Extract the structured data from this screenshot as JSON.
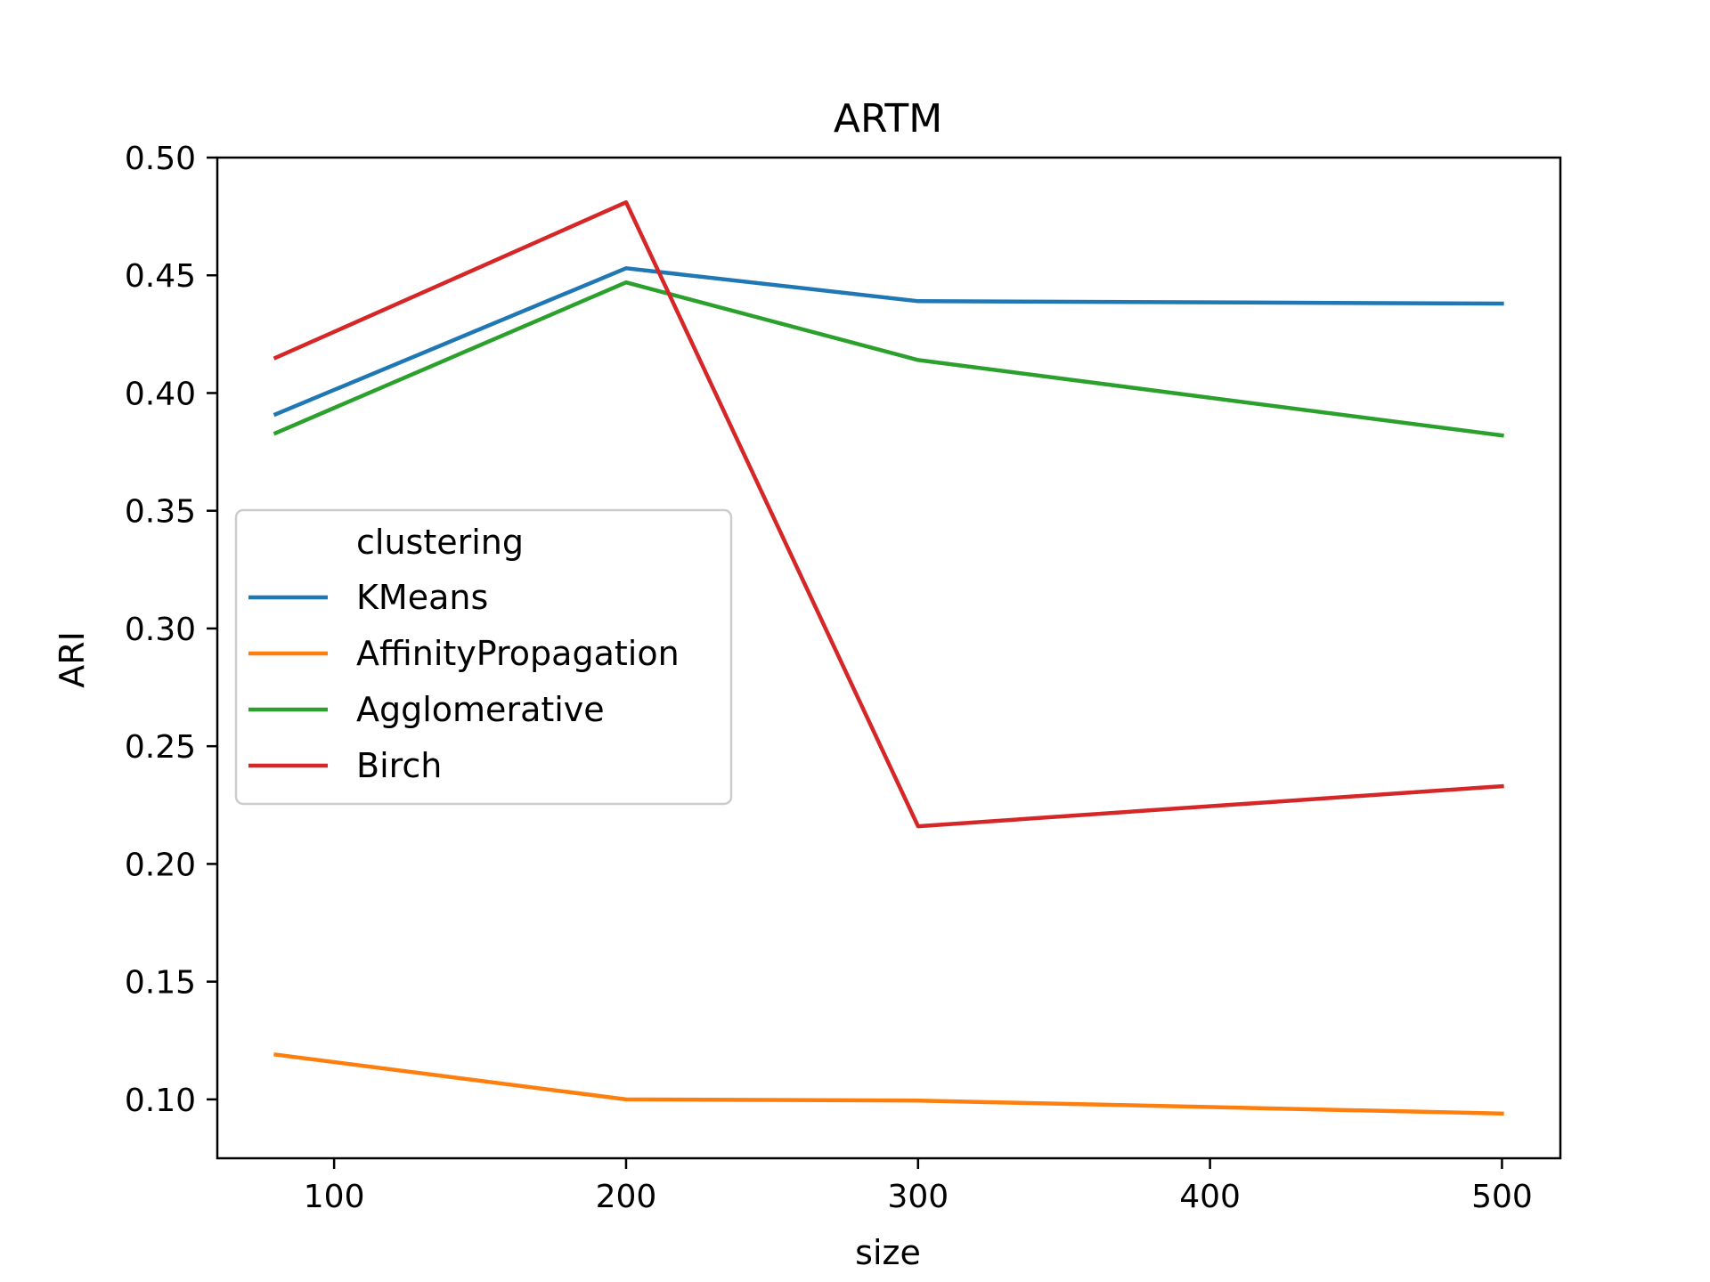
{
  "chart_data": {
    "type": "line",
    "title": "ARTM",
    "xlabel": "size",
    "ylabel": "ARI",
    "x": [
      80,
      200,
      300,
      500
    ],
    "xlim": [
      60,
      520
    ],
    "ylim": [
      0.075,
      0.5
    ],
    "xticks": [
      100,
      200,
      300,
      400,
      500
    ],
    "xtick_labels": [
      "100",
      "200",
      "300",
      "400",
      "500"
    ],
    "yticks": [
      0.1,
      0.15,
      0.2,
      0.25,
      0.3,
      0.35,
      0.4,
      0.45,
      0.5
    ],
    "ytick_labels": [
      "0.10",
      "0.15",
      "0.20",
      "0.25",
      "0.30",
      "0.35",
      "0.40",
      "0.45",
      "0.50"
    ],
    "grid": false,
    "legend": {
      "title": "clustering",
      "placement": "center-left"
    },
    "series": [
      {
        "name": "KMeans",
        "color": "#1f77b4",
        "values": [
          0.391,
          0.453,
          0.439,
          0.438
        ]
      },
      {
        "name": "AffinityPropagation",
        "color": "#ff7f0e",
        "values": [
          0.119,
          0.1,
          0.0995,
          0.094
        ]
      },
      {
        "name": "Agglomerative",
        "color": "#2ca02c",
        "values": [
          0.383,
          0.447,
          0.414,
          0.382
        ]
      },
      {
        "name": "Birch",
        "color": "#d62728",
        "values": [
          0.415,
          0.481,
          0.216,
          0.233
        ]
      }
    ]
  }
}
